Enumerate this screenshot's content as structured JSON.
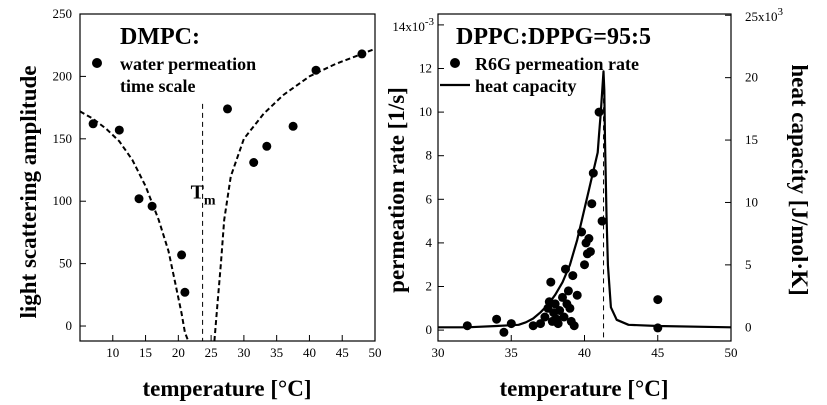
{
  "chart_data": [
    {
      "type": "scatter",
      "title": "DMPC:",
      "xlabel": "temperature [°C]",
      "ylabel": "light scattering amplitude",
      "xlim": [
        5,
        50
      ],
      "ylim": [
        -12,
        250
      ],
      "x_ticks": [
        10,
        15,
        20,
        25,
        30,
        35,
        40,
        45,
        50
      ],
      "y_ticks": [
        0,
        50,
        100,
        150,
        200,
        250
      ],
      "series": [
        {
          "name": "water permeation time scale",
          "name_line2": "time scale",
          "legend_text": "water permeation",
          "kind": "points",
          "x": [
            7,
            11,
            14,
            16,
            20.5,
            21,
            27.5,
            31.5,
            33.5,
            37.5,
            41,
            48
          ],
          "y": [
            162,
            157,
            102,
            96,
            57,
            27,
            174,
            131,
            144,
            160,
            205,
            218
          ]
        },
        {
          "name": "fit-left",
          "kind": "dashed-line",
          "x": [
            5,
            7,
            9,
            11,
            13,
            15,
            17,
            18.5,
            19.5,
            20.5,
            21,
            21.5
          ],
          "y": [
            172,
            166,
            158,
            148,
            133,
            112,
            85,
            60,
            35,
            10,
            -5,
            -12
          ]
        },
        {
          "name": "fit-right",
          "kind": "dashed-line",
          "x": [
            25.5,
            26,
            26.5,
            27,
            28,
            30,
            33,
            36,
            40,
            44,
            48,
            50
          ],
          "y": [
            -12,
            20,
            50,
            85,
            120,
            150,
            170,
            185,
            200,
            210,
            218,
            222
          ]
        }
      ],
      "vline": {
        "x": 23.7,
        "label": "T",
        "sub": "m"
      }
    },
    {
      "type": "scatter",
      "title": "DPPC:DPPG=95:5",
      "xlabel": "temperature [°C]",
      "ylabel": "permeation rate [1/s]",
      "y2label": "heat capacity [J/mol·K]",
      "xlim": [
        30,
        50
      ],
      "ylim": [
        -0.5,
        14.5
      ],
      "y2lim": [
        -1.1,
        25.1
      ],
      "x_ticks": [
        30,
        35,
        40,
        45,
        50
      ],
      "y_ticks": [
        0,
        2,
        4,
        6,
        8,
        10,
        12
      ],
      "y_top_label": "14x10",
      "y_top_exp": "-3",
      "y2_ticks": [
        0,
        5,
        10,
        15,
        20
      ],
      "y2_top_label": "25x10",
      "y2_top_exp": "3",
      "series": [
        {
          "name": "R6G permeation rate",
          "kind": "points",
          "x": [
            32,
            34,
            34.5,
            35,
            36.5,
            37,
            37.3,
            37.5,
            37.6,
            37.7,
            37.8,
            37.9,
            38,
            38.1,
            38.2,
            38.3,
            38.5,
            38.6,
            38.7,
            38.8,
            38.9,
            39,
            39.1,
            39.2,
            39.3,
            39.5,
            39.8,
            40,
            40.1,
            40.2,
            40.3,
            40.4,
            40.5,
            40.6,
            41,
            41.2,
            45,
            45
          ],
          "y": [
            0.2,
            0.5,
            -0.1,
            0.3,
            0.2,
            0.3,
            0.6,
            1.0,
            1.3,
            2.2,
            0.4,
            0.8,
            1.2,
            0.5,
            0.3,
            0.9,
            1.5,
            0.6,
            2.8,
            1.2,
            1.8,
            1.0,
            0.4,
            2.5,
            0.2,
            1.6,
            4.5,
            3.0,
            4.0,
            3.5,
            4.2,
            3.6,
            5.8,
            7.2,
            10.0,
            5.0,
            1.4,
            0.1
          ]
        },
        {
          "name": "heat capacity",
          "kind": "solid-line",
          "axis": "right",
          "x": [
            30,
            32,
            34,
            35.5,
            36,
            36.5,
            37,
            37.5,
            38,
            38.5,
            39,
            39.5,
            40,
            40.3,
            40.5,
            40.7,
            40.9,
            41,
            41.1,
            41.2,
            41.3,
            41.35,
            41.4,
            41.5,
            41.6,
            41.8,
            42.2,
            43,
            45,
            50
          ],
          "y": [
            0,
            0,
            0.1,
            0.2,
            0.4,
            0.7,
            1.2,
            1.8,
            2.6,
            3.6,
            5.0,
            7.0,
            9.5,
            11.0,
            12.0,
            13.0,
            14.0,
            15.5,
            17.0,
            18.8,
            20.5,
            19.0,
            15.0,
            9.0,
            5.0,
            1.6,
            0.6,
            0.2,
            0.1,
            0.0
          ]
        }
      ],
      "legend": [
        "R6G permeation rate",
        "heat capacity"
      ],
      "vline": {
        "x": 41.3
      }
    }
  ]
}
